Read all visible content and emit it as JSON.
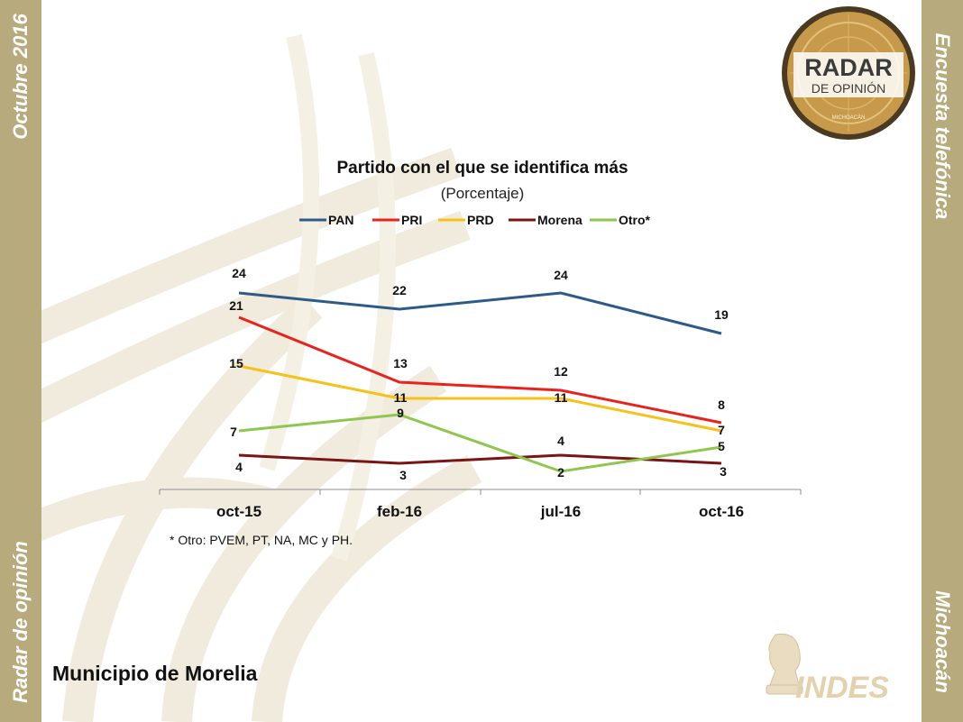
{
  "sidebar": {
    "top_left": "Octubre 2016",
    "bottom_left": "Radar de opinión",
    "top_right": "Encuesta telefónica",
    "bottom_right": "Michoacán"
  },
  "logos": {
    "radar_line1": "RADAR",
    "radar_line2": "DE OPINIÓN",
    "radar_line3": "MICHOACÁN",
    "indes": "INDES"
  },
  "footnote": "* Otro: PVEM, PT, NA, MC y PH.",
  "municipio": "Municipio de Morelia",
  "colors": {
    "side": "#b7aa7c",
    "PAN": "#2e5a88",
    "PRI": "#e8231e",
    "PRD": "#f7c11b",
    "Morena": "#7b1416",
    "Otro": "#8fc64f"
  },
  "chart_data": {
    "type": "line",
    "title": "Partido con el que se identifica más",
    "subtitle": "(Porcentaje)",
    "categories": [
      "oct-15",
      "feb-16",
      "jul-16",
      "oct-16"
    ],
    "legend_position": "top",
    "grid": false,
    "series": [
      {
        "name": "PAN",
        "color": "#2e5a88",
        "values": [
          24,
          22,
          24,
          19
        ]
      },
      {
        "name": "PRI",
        "color": "#e8231e",
        "values": [
          21,
          13,
          12,
          8
        ]
      },
      {
        "name": "PRD",
        "color": "#f7c11b",
        "values": [
          15,
          11,
          11,
          7
        ]
      },
      {
        "name": "Morena",
        "color": "#7b1416",
        "values": [
          4,
          3,
          4,
          3
        ]
      },
      {
        "name": "Otro*",
        "color": "#8fc64f",
        "values": [
          7,
          9,
          2,
          5
        ]
      }
    ]
  }
}
